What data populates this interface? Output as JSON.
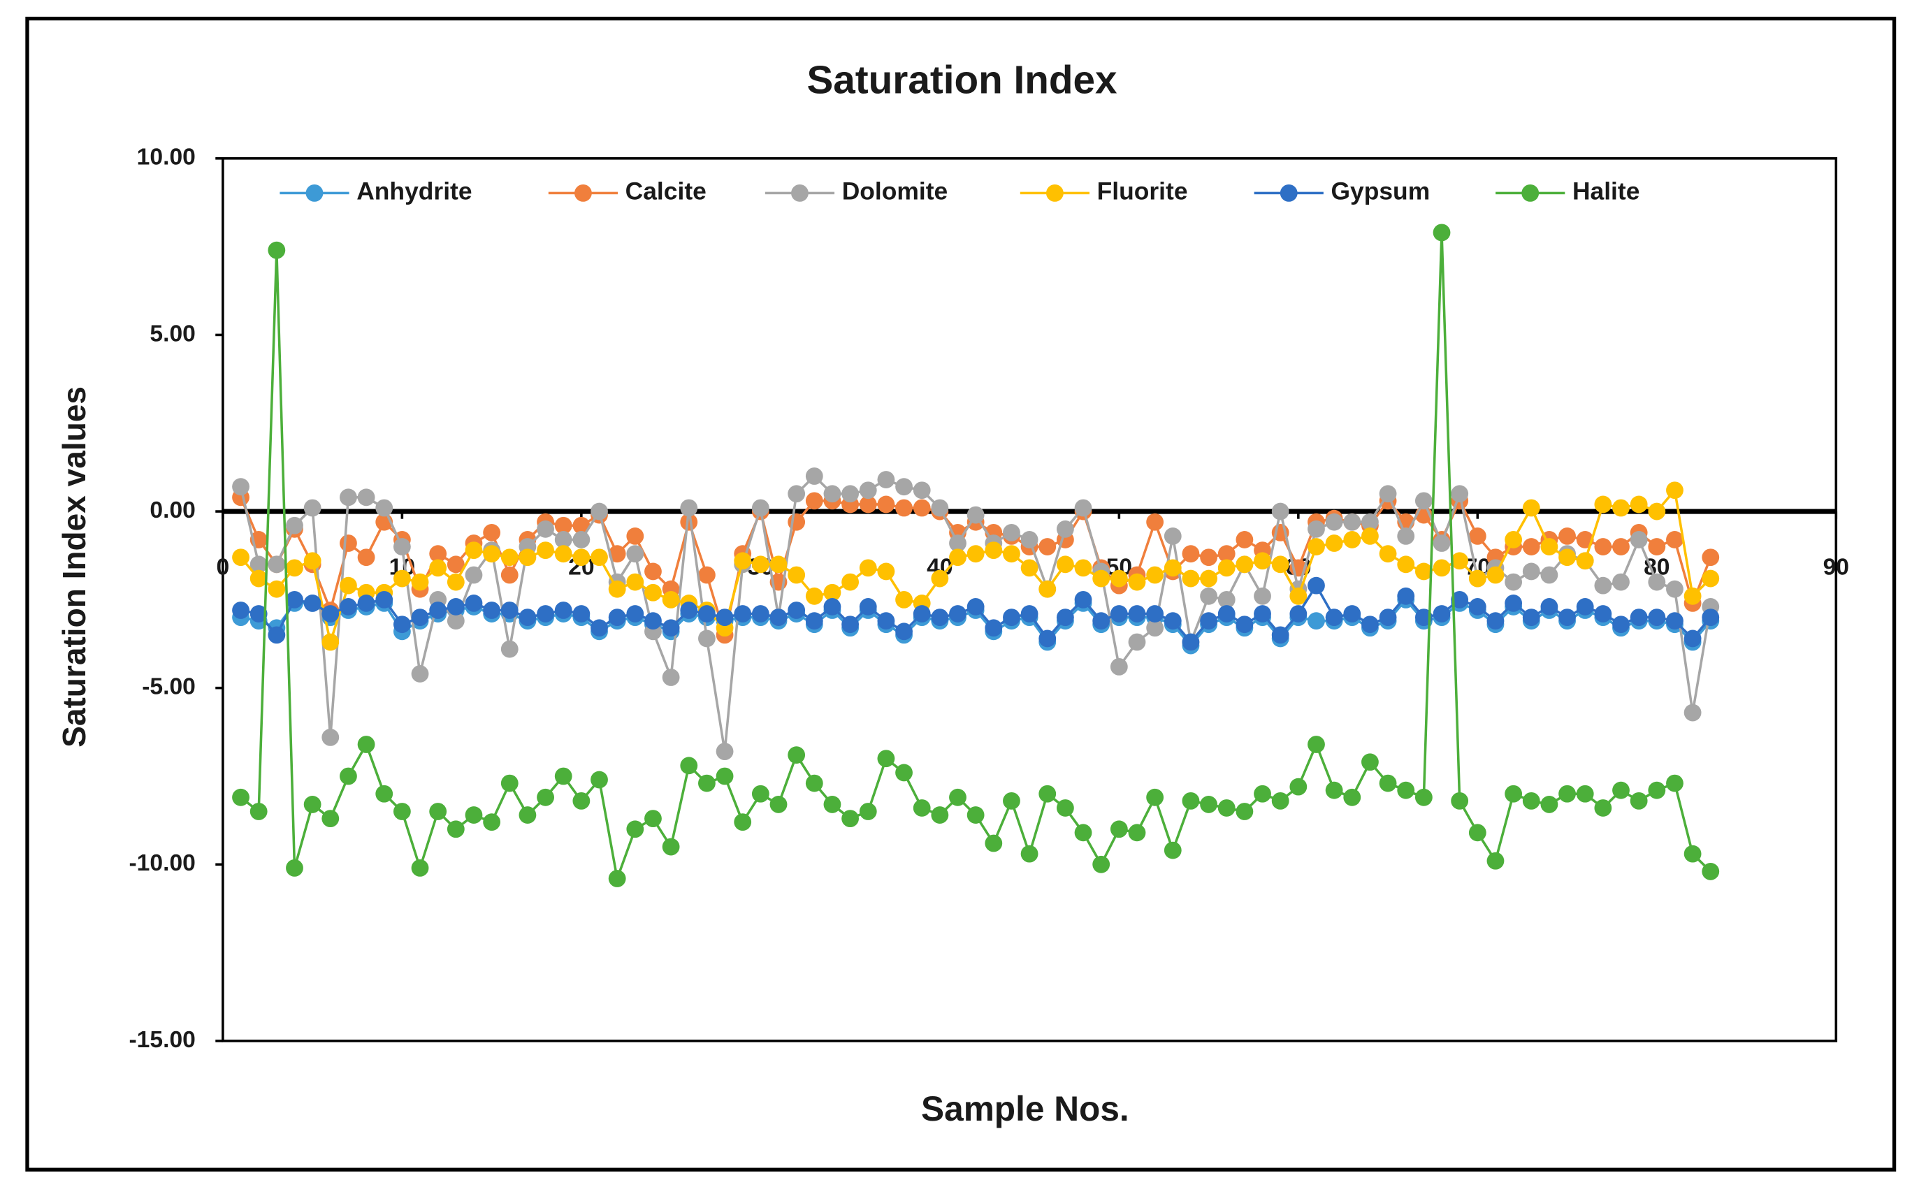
{
  "chart_data": {
    "type": "line",
    "title": "Saturation Index",
    "xlabel": "Sample Nos.",
    "ylabel": "Saturation Index values",
    "xlim": [
      0,
      90
    ],
    "xticks": [
      0,
      10,
      20,
      30,
      40,
      50,
      60,
      70,
      80,
      90
    ],
    "ylim": [
      -15,
      10
    ],
    "yticks": [
      {
        "value": -15,
        "label": "-15.00"
      },
      {
        "value": -10,
        "label": "-10.00"
      },
      {
        "value": -5,
        "label": "-5.00"
      },
      {
        "value": 0,
        "label": "0.00"
      },
      {
        "value": 5,
        "label": "5.00"
      },
      {
        "value": 10,
        "label": "10.00"
      }
    ],
    "grid": false,
    "legend": "top",
    "x": [
      1,
      2,
      3,
      4,
      5,
      6,
      7,
      8,
      9,
      10,
      11,
      12,
      13,
      14,
      15,
      16,
      17,
      18,
      19,
      20,
      21,
      22,
      23,
      24,
      25,
      26,
      27,
      28,
      29,
      30,
      31,
      32,
      33,
      34,
      35,
      36,
      37,
      38,
      39,
      40,
      41,
      42,
      43,
      44,
      45,
      46,
      47,
      48,
      49,
      50,
      51,
      52,
      53,
      54,
      55,
      56,
      57,
      58,
      59,
      60,
      61,
      62,
      63,
      64,
      65,
      66,
      67,
      68,
      69,
      70,
      71,
      72,
      73,
      74,
      75,
      76,
      77,
      78,
      79,
      80,
      81,
      82,
      83
    ],
    "series": [
      {
        "name": "Anhydrite",
        "color": "#3d9ad6",
        "values": [
          -3.0,
          -3.1,
          -3.3,
          -2.6,
          -2.6,
          -3.0,
          -2.8,
          -2.7,
          -2.6,
          -3.4,
          -3.1,
          -2.9,
          -2.8,
          -2.7,
          -2.9,
          -2.9,
          -3.1,
          -3.0,
          -2.9,
          -3.0,
          -3.4,
          -3.1,
          -3.0,
          -3.2,
          -3.4,
          -2.9,
          -3.0,
          -3.1,
          -3.0,
          -3.0,
          -3.1,
          -2.9,
          -3.2,
          -2.8,
          -3.3,
          -2.8,
          -3.2,
          -3.5,
          -3.0,
          -3.1,
          -3.0,
          -2.8,
          -3.4,
          -3.1,
          -3.0,
          -3.7,
          -3.1,
          -2.6,
          -3.2,
          -3.0,
          -3.0,
          -3.0,
          -3.2,
          -3.8,
          -3.2,
          -3.0,
          -3.3,
          -3.0,
          -3.6,
          -3.0,
          -3.1,
          -3.1,
          -3.0,
          -3.3,
          -3.1,
          -2.5,
          -3.1,
          -3.0,
          -2.6,
          -2.8,
          -3.2,
          -2.7,
          -3.1,
          -2.8,
          -3.1,
          -2.8,
          -3.0,
          -3.3,
          -3.1,
          -3.1,
          -3.2,
          -3.7,
          -3.1
        ]
      },
      {
        "name": "Calcite",
        "color": "#f07f3c",
        "values": [
          0.4,
          -0.8,
          -1.5,
          -0.5,
          -1.5,
          -2.8,
          -0.9,
          -1.3,
          -0.3,
          -0.8,
          -2.2,
          -1.2,
          -1.5,
          -0.9,
          -0.6,
          -1.8,
          -0.8,
          -0.3,
          -0.4,
          -0.4,
          -0.1,
          -1.2,
          -0.7,
          -1.7,
          -2.2,
          -0.3,
          -1.8,
          -3.5,
          -1.2,
          0.0,
          -2.0,
          -0.3,
          0.3,
          0.3,
          0.2,
          0.2,
          0.2,
          0.1,
          0.1,
          0.0,
          -0.6,
          -0.3,
          -0.6,
          -0.7,
          -1.0,
          -1.0,
          -0.8,
          0.0,
          -1.6,
          -2.1,
          -1.8,
          -0.3,
          -1.7,
          -1.2,
          -1.3,
          -1.2,
          -0.8,
          -1.1,
          -0.6,
          -1.6,
          -0.3,
          -0.2,
          -0.3,
          -0.4,
          0.3,
          -0.3,
          -0.1,
          -0.8,
          0.3,
          -0.7,
          -1.3,
          -1.0,
          -1.0,
          -0.8,
          -0.7,
          -0.8,
          -1.0,
          -1.0,
          -0.6,
          -1.0,
          -0.8,
          -2.6,
          -1.3
        ]
      },
      {
        "name": "Dolomite",
        "color": "#a6a6a6",
        "values": [
          0.7,
          -1.5,
          -1.5,
          -0.4,
          0.1,
          -6.4,
          0.4,
          0.4,
          0.1,
          -1.0,
          -4.6,
          -2.5,
          -3.1,
          -1.8,
          -1.1,
          -3.9,
          -1.0,
          -0.5,
          -0.8,
          -0.8,
          0.0,
          -2.0,
          -1.2,
          -3.4,
          -4.7,
          0.1,
          -3.6,
          -6.8,
          -1.5,
          0.1,
          -3.0,
          0.5,
          1.0,
          0.5,
          0.5,
          0.6,
          0.9,
          0.7,
          0.6,
          0.1,
          -0.9,
          -0.1,
          -0.9,
          -0.6,
          -0.8,
          -2.2,
          -0.5,
          0.1,
          -1.7,
          -4.4,
          -3.7,
          -3.3,
          -0.7,
          -3.7,
          -2.4,
          -2.5,
          -1.5,
          -2.4,
          0.0,
          -2.2,
          -0.5,
          -0.3,
          -0.3,
          -0.3,
          0.5,
          -0.7,
          0.3,
          -0.9,
          0.5,
          -1.9,
          -1.6,
          -2.0,
          -1.7,
          -1.8,
          -1.2,
          -1.4,
          -2.1,
          -2.0,
          -0.8,
          -2.0,
          -2.2,
          -5.7,
          -2.7
        ]
      },
      {
        "name": "Fluorite",
        "color": "#ffc000",
        "values": [
          -1.3,
          -1.9,
          -2.2,
          -1.6,
          -1.4,
          -3.7,
          -2.1,
          -2.3,
          -2.3,
          -1.9,
          -2.0,
          -1.6,
          -2.0,
          -1.1,
          -1.2,
          -1.3,
          -1.3,
          -1.1,
          -1.2,
          -1.3,
          -1.3,
          -2.2,
          -2.0,
          -2.3,
          -2.5,
          -2.6,
          -2.8,
          -3.3,
          -1.4,
          -1.5,
          -1.5,
          -1.8,
          -2.4,
          -2.3,
          -2.0,
          -1.6,
          -1.7,
          -2.5,
          -2.6,
          -1.9,
          -1.3,
          -1.2,
          -1.1,
          -1.2,
          -1.6,
          -2.2,
          -1.5,
          -1.6,
          -1.9,
          -1.9,
          -2.0,
          -1.8,
          -1.6,
          -1.9,
          -1.9,
          -1.6,
          -1.5,
          -1.4,
          -1.5,
          -2.4,
          -1.0,
          -0.9,
          -0.8,
          -0.7,
          -1.2,
          -1.5,
          -1.7,
          -1.6,
          -1.4,
          -1.9,
          -1.8,
          -0.8,
          0.1,
          -1.0,
          -1.3,
          -1.4,
          0.2,
          0.1,
          0.2,
          0.0,
          0.6,
          -2.4,
          -1.9
        ]
      },
      {
        "name": "Gypsum",
        "color": "#2e6fc5",
        "values": [
          -2.8,
          -2.9,
          -3.5,
          -2.5,
          -2.6,
          -2.9,
          -2.7,
          -2.6,
          -2.5,
          -3.2,
          -3.0,
          -2.8,
          -2.7,
          -2.6,
          -2.8,
          -2.8,
          -3.0,
          -2.9,
          -2.8,
          -2.9,
          -3.3,
          -3.0,
          -2.9,
          -3.1,
          -3.3,
          -2.8,
          -2.9,
          -3.0,
          -2.9,
          -2.9,
          -3.0,
          -2.8,
          -3.1,
          -2.7,
          -3.2,
          -2.7,
          -3.1,
          -3.4,
          -2.9,
          -3.0,
          -2.9,
          -2.7,
          -3.3,
          -3.0,
          -2.9,
          -3.6,
          -3.0,
          -2.5,
          -3.1,
          -2.9,
          -2.9,
          -2.9,
          -3.1,
          -3.7,
          -3.1,
          -2.9,
          -3.2,
          -2.9,
          -3.5,
          -2.9,
          -2.1,
          -3.0,
          -2.9,
          -3.2,
          -3.0,
          -2.4,
          -3.0,
          -2.9,
          -2.5,
          -2.7,
          -3.1,
          -2.6,
          -3.0,
          -2.7,
          -3.0,
          -2.7,
          -2.9,
          -3.2,
          -3.0,
          -3.0,
          -3.1,
          -3.6,
          -3.0
        ]
      },
      {
        "name": "Halite",
        "color": "#4caf3a",
        "values": [
          -8.1,
          -8.5,
          7.4,
          -10.1,
          -8.3,
          -8.7,
          -7.5,
          -6.6,
          -8.0,
          -8.5,
          -10.1,
          -8.5,
          -9.0,
          -8.6,
          -8.8,
          -7.7,
          -8.6,
          -8.1,
          -7.5,
          -8.2,
          -7.6,
          -10.4,
          -9.0,
          -8.7,
          -9.5,
          -7.2,
          -7.7,
          -7.5,
          -8.8,
          -8.0,
          -8.3,
          -6.9,
          -7.7,
          -8.3,
          -8.7,
          -8.5,
          -7.0,
          -7.4,
          -8.4,
          -8.6,
          -8.1,
          -8.6,
          -9.4,
          -8.2,
          -9.7,
          -8.0,
          -8.4,
          -9.1,
          -10.0,
          -9.0,
          -9.1,
          -8.1,
          -9.6,
          -8.2,
          -8.3,
          -8.4,
          -8.5,
          -8.0,
          -8.2,
          -7.8,
          -6.6,
          -7.9,
          -8.1,
          -7.1,
          -7.7,
          -7.9,
          -8.1,
          7.9,
          -8.2,
          -9.1,
          -9.9,
          -8.0,
          -8.2,
          -8.3,
          -8.0,
          -8.0,
          -8.4,
          -7.9,
          -8.2,
          -7.9,
          -7.7,
          -9.7,
          -10.2
        ]
      }
    ]
  }
}
